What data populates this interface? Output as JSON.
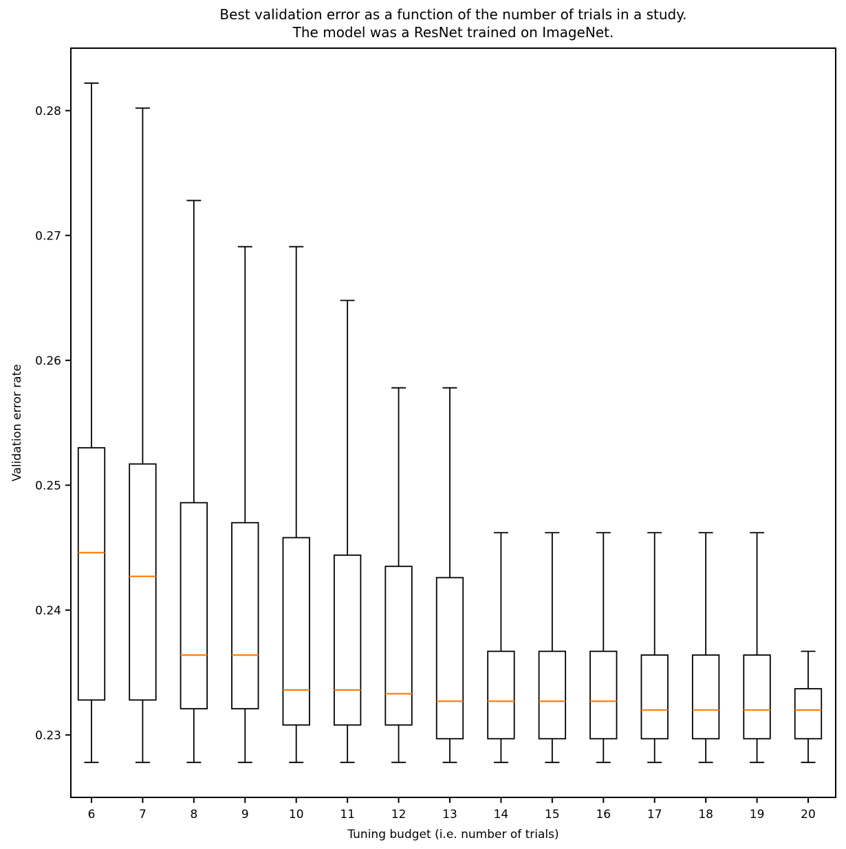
{
  "chart_data": {
    "type": "boxplot",
    "title_line1": "Best validation error as a function of the number of trials in a study.",
    "title_line2": "The model was a ResNet trained on ImageNet.",
    "xlabel": "Tuning budget (i.e. number of trials)",
    "ylabel": "Validation error rate",
    "ylim": [
      0.225,
      0.285
    ],
    "grid": false,
    "legend": "none",
    "yticks": [
      {
        "value": 0.23,
        "label": "0.23"
      },
      {
        "value": 0.24,
        "label": "0.24"
      },
      {
        "value": 0.25,
        "label": "0.25"
      },
      {
        "value": 0.26,
        "label": "0.26"
      },
      {
        "value": 0.27,
        "label": "0.27"
      },
      {
        "value": 0.28,
        "label": "0.28"
      }
    ],
    "categories": [
      "6",
      "7",
      "8",
      "9",
      "10",
      "11",
      "12",
      "13",
      "14",
      "15",
      "16",
      "17",
      "18",
      "19",
      "20"
    ],
    "boxes": [
      {
        "category": "6",
        "whislo": 0.2278,
        "q1": 0.2328,
        "med": 0.2446,
        "q3": 0.253,
        "whishi": 0.2822
      },
      {
        "category": "7",
        "whislo": 0.2278,
        "q1": 0.2328,
        "med": 0.2427,
        "q3": 0.2517,
        "whishi": 0.2802
      },
      {
        "category": "8",
        "whislo": 0.2278,
        "q1": 0.2321,
        "med": 0.2364,
        "q3": 0.2486,
        "whishi": 0.2728
      },
      {
        "category": "9",
        "whislo": 0.2278,
        "q1": 0.2321,
        "med": 0.2364,
        "q3": 0.247,
        "whishi": 0.2691
      },
      {
        "category": "10",
        "whislo": 0.2278,
        "q1": 0.2308,
        "med": 0.2336,
        "q3": 0.2458,
        "whishi": 0.2691
      },
      {
        "category": "11",
        "whislo": 0.2278,
        "q1": 0.2308,
        "med": 0.2336,
        "q3": 0.2444,
        "whishi": 0.2648
      },
      {
        "category": "12",
        "whislo": 0.2278,
        "q1": 0.2308,
        "med": 0.2333,
        "q3": 0.2435,
        "whishi": 0.2578
      },
      {
        "category": "13",
        "whislo": 0.2278,
        "q1": 0.2297,
        "med": 0.2327,
        "q3": 0.2426,
        "whishi": 0.2578
      },
      {
        "category": "14",
        "whislo": 0.2278,
        "q1": 0.2297,
        "med": 0.2327,
        "q3": 0.2367,
        "whishi": 0.2462
      },
      {
        "category": "15",
        "whislo": 0.2278,
        "q1": 0.2297,
        "med": 0.2327,
        "q3": 0.2367,
        "whishi": 0.2462
      },
      {
        "category": "16",
        "whislo": 0.2278,
        "q1": 0.2297,
        "med": 0.2327,
        "q3": 0.2367,
        "whishi": 0.2462
      },
      {
        "category": "17",
        "whislo": 0.2278,
        "q1": 0.2297,
        "med": 0.232,
        "q3": 0.2364,
        "whishi": 0.2462
      },
      {
        "category": "18",
        "whislo": 0.2278,
        "q1": 0.2297,
        "med": 0.232,
        "q3": 0.2364,
        "whishi": 0.2462
      },
      {
        "category": "19",
        "whislo": 0.2278,
        "q1": 0.2297,
        "med": 0.232,
        "q3": 0.2364,
        "whishi": 0.2462
      },
      {
        "category": "20",
        "whislo": 0.2278,
        "q1": 0.2297,
        "med": 0.232,
        "q3": 0.2337,
        "whishi": 0.2367
      }
    ],
    "colors": {
      "box_line": "#000000",
      "median_line": "#ff7f0e",
      "axis_line": "#000000",
      "text": "#000000",
      "background": "#ffffff"
    }
  }
}
